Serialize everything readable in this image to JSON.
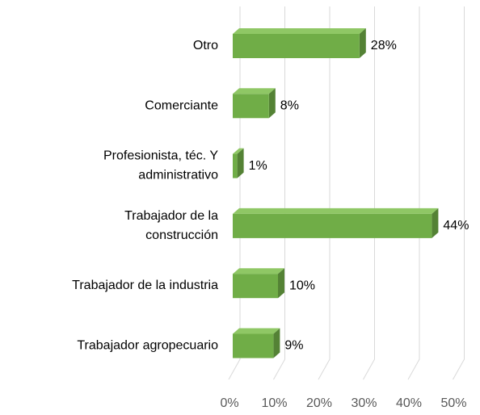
{
  "chart_data": {
    "type": "bar3d_horizontal",
    "categories": [
      [
        "Otro"
      ],
      [
        "Comerciante"
      ],
      [
        "Profesionista, téc. Y",
        "administrativo"
      ],
      [
        "Trabajador de la",
        "construcción"
      ],
      [
        "Trabajador de la industria"
      ],
      [
        "Trabajador agropecuario"
      ]
    ],
    "values": [
      28,
      8,
      1,
      44,
      10,
      9
    ],
    "value_labels": [
      "28%",
      "8%",
      "1%",
      "44%",
      "10%",
      "9%"
    ],
    "color": "#70ad47",
    "xlim": [
      0,
      50
    ],
    "xticks": [
      {
        "value": 0,
        "label": "0%"
      },
      {
        "value": 10,
        "label": "10%"
      },
      {
        "value": 20,
        "label": "20%"
      },
      {
        "value": 30,
        "label": "30%"
      },
      {
        "value": 40,
        "label": "40%"
      },
      {
        "value": 50,
        "label": "50%"
      }
    ],
    "grid": true
  }
}
